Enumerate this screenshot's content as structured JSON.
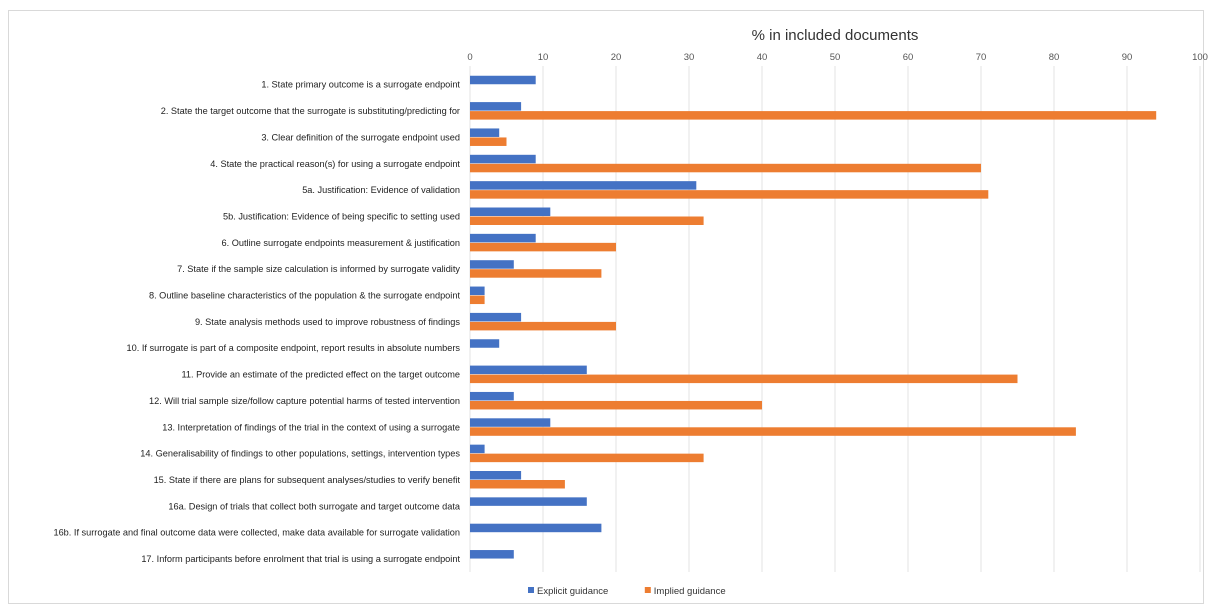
{
  "chart_data": {
    "type": "bar",
    "orientation": "horizontal",
    "axis_title": "% in included documents",
    "xlim": [
      0,
      100
    ],
    "xticks": [
      0,
      10,
      20,
      30,
      40,
      50,
      60,
      70,
      80,
      90,
      100
    ],
    "grid": true,
    "legend_position": "bottom",
    "categories": [
      "1. State primary outcome is a surrogate endpoint",
      "2. State the target outcome that the surrogate is substituting/predicting for",
      "3. Clear definition of the surrogate endpoint used",
      "4. State the practical reason(s) for using a surrogate endpoint",
      "5a. Justification: Evidence of validation",
      "5b. Justification: Evidence of being specific to setting used",
      "6. Outline surrogate endpoints measurement & justification",
      "7. State if the sample size calculation is informed by surrogate validity",
      "8. Outline baseline characteristics of the population & the surrogate endpoint",
      "9. State analysis methods used to improve robustness of findings",
      "10. If surrogate is part of a composite endpoint, report results in absolute numbers",
      "11. Provide an estimate of the predicted effect on the target outcome",
      "12. Will trial sample size/follow capture potential harms of tested intervention",
      "13. Interpretation of findings of the trial in the context of using a surrogate",
      "14. Generalisability of findings to other populations, settings, intervention types",
      "15. State if there are plans for subsequent analyses/studies to verify benefit",
      "16a. Design of trials that collect both surrogate and target outcome data",
      "16b. If surrogate and final outcome data were collected, make data available for surrogate validation",
      "17. Inform participants before enrolment that trial is using a surrogate endpoint"
    ],
    "series": [
      {
        "name": "Explicit guidance",
        "color": "#4472C4",
        "values": [
          9,
          7,
          4,
          9,
          31,
          11,
          9,
          6,
          2,
          7,
          4,
          16,
          6,
          11,
          2,
          7,
          16,
          18,
          6
        ]
      },
      {
        "name": "Implied guidance",
        "color": "#ED7D31",
        "values": [
          0,
          94,
          5,
          70,
          71,
          32,
          20,
          18,
          2,
          20,
          0,
          75,
          40,
          83,
          32,
          13,
          0,
          0,
          0
        ]
      }
    ]
  }
}
